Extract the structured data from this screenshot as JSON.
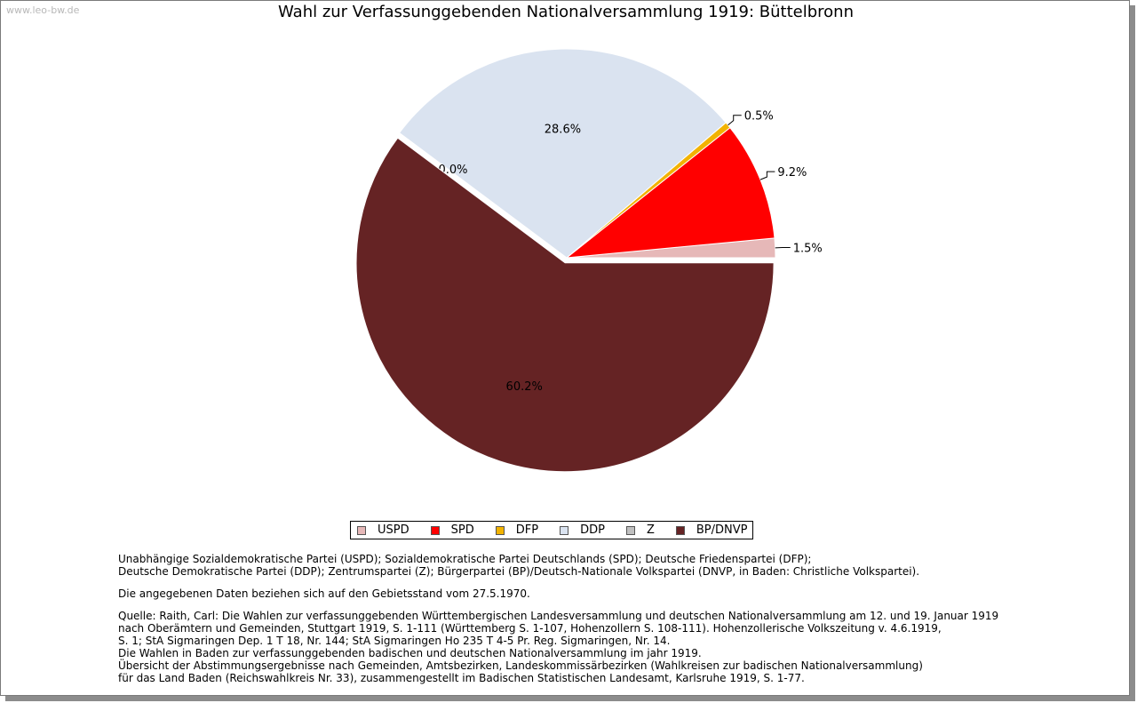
{
  "watermark": "www.leo-bw.de",
  "chart_data": {
    "type": "pie",
    "title": "Wahl zur Verfassunggebenden Nationalversammlung 1919: Büttelbronn",
    "slices": [
      {
        "name": "USPD",
        "value": 1.5,
        "label": "1.5%",
        "color": "#e6b8b8"
      },
      {
        "name": "SPD",
        "value": 9.2,
        "label": "9.2%",
        "color": "#ff0000"
      },
      {
        "name": "DFP",
        "value": 0.5,
        "label": "0.5%",
        "color": "#f2b300"
      },
      {
        "name": "DDP",
        "value": 28.6,
        "label": "28.6%",
        "color": "#dae3f0"
      },
      {
        "name": "Z",
        "value": 0.0,
        "label": "0.0%",
        "color": "#c0c0c0"
      },
      {
        "name": "BP/DNVP",
        "value": 60.2,
        "label": "60.2%",
        "color": "#652324"
      }
    ],
    "legend_position": "bottom"
  },
  "notes": {
    "parties": [
      "Unabhängige Sozialdemokratische Partei (USPD); Sozialdemokratische Partei Deutschlands (SPD); Deutsche Friedenspartei (DFP);",
      "Deutsche Demokratische Partei (DDP); Zentrumspartei (Z); Bürgerpartei (BP)/Deutsch-Nationale Volkspartei (DNVP, in Baden: Christliche Volkspartei)."
    ],
    "territory": "Die angegebenen Daten beziehen sich auf den Gebietsstand vom 27.5.1970.",
    "source": [
      "Quelle: Raith, Carl: Die Wahlen zur verfassunggebenden Württembergischen Landesversammlung und deutschen Nationalversammlung am 12. und 19. Januar 1919",
      "nach Oberämtern und Gemeinden, Stuttgart 1919, S. 1-111 (Württemberg S. 1-107, Hohenzollern S. 108-111). Hohenzollerische Volkszeitung v. 4.6.1919,",
      "S. 1; StA Sigmaringen Dep. 1 T 18, Nr. 144; StA Sigmaringen Ho 235 T 4-5 Pr. Reg. Sigmaringen, Nr. 14.",
      "Die Wahlen in Baden zur verfassunggebenden badischen und deutschen Nationalversammlung im jahr 1919.",
      "Übersicht der Abstimmungsergebnisse nach Gemeinden, Amtsbezirken, Landeskommissärbezirken (Wahlkreisen zur badischen Nationalversammlung)",
      "für das Land Baden (Reichswahlkreis Nr. 33), zusammengestellt im Badischen Statistischen Landesamt, Karlsruhe 1919, S. 1-77."
    ]
  }
}
